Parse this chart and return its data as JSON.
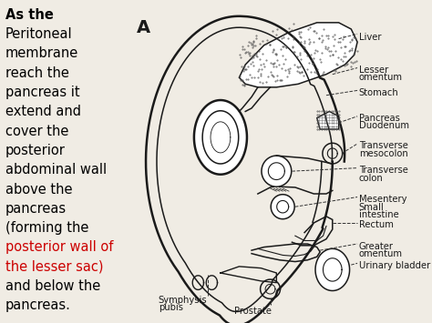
{
  "bg_color": "#f0ece4",
  "diagram_bg": "#ffffff",
  "left_text_lines": [
    {
      "text": "As the",
      "bold": true,
      "color": "#000000",
      "fontsize": 10.5
    },
    {
      "text": "Peritoneal",
      "bold": false,
      "color": "#000000",
      "fontsize": 10.5
    },
    {
      "text": "membrane",
      "bold": false,
      "color": "#000000",
      "fontsize": 10.5
    },
    {
      "text": "reach the",
      "bold": false,
      "color": "#000000",
      "fontsize": 10.5
    },
    {
      "text": "pancreas it",
      "bold": false,
      "color": "#000000",
      "fontsize": 10.5
    },
    {
      "text": "extend and",
      "bold": false,
      "color": "#000000",
      "fontsize": 10.5
    },
    {
      "text": "cover the",
      "bold": false,
      "color": "#000000",
      "fontsize": 10.5
    },
    {
      "text": "posterior",
      "bold": false,
      "color": "#000000",
      "fontsize": 10.5
    },
    {
      "text": "abdominal wall",
      "bold": false,
      "color": "#000000",
      "fontsize": 10.5
    },
    {
      "text": "above the",
      "bold": false,
      "color": "#000000",
      "fontsize": 10.5
    },
    {
      "text": "pancreas",
      "bold": false,
      "color": "#000000",
      "fontsize": 10.5
    },
    {
      "text": "(forming the",
      "bold": false,
      "color": "#000000",
      "fontsize": 10.5
    },
    {
      "text": "posterior wall of",
      "bold": false,
      "color": "#cc0000",
      "fontsize": 10.5
    },
    {
      "text": "the lesser sac)",
      "bold": false,
      "color": "#cc0000",
      "fontsize": 10.5
    },
    {
      "text": "and below the",
      "bold": false,
      "color": "#000000",
      "fontsize": 10.5
    },
    {
      "text": "pancreas.",
      "bold": false,
      "color": "#000000",
      "fontsize": 10.5
    }
  ]
}
